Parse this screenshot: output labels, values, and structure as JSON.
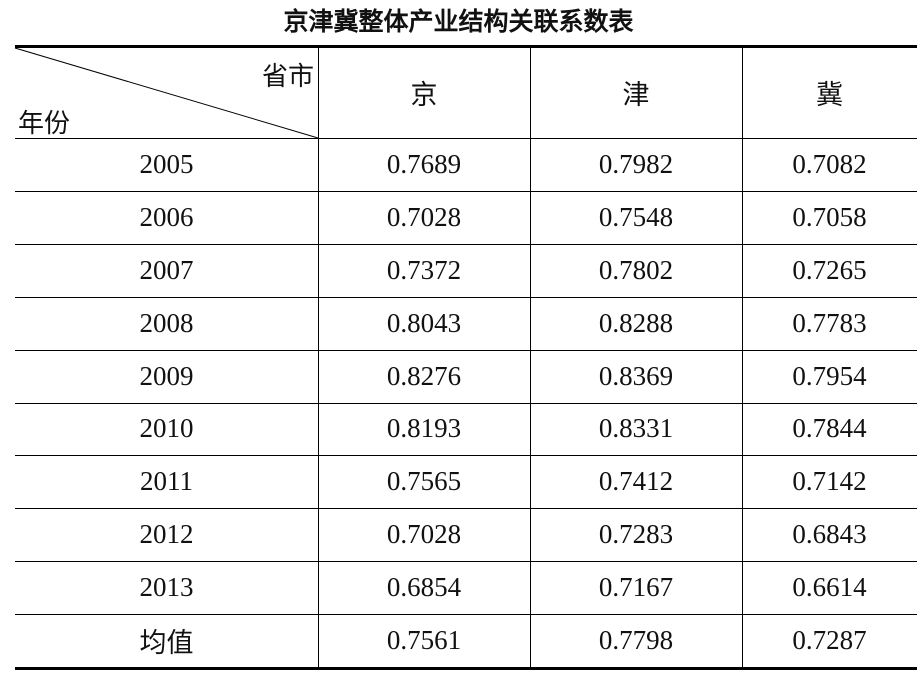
{
  "title": "京津冀整体产业结构关联系数表",
  "header": {
    "corner_top": "省市",
    "corner_bottom": "年份",
    "columns": [
      "京",
      "津",
      "冀"
    ]
  },
  "rows": [
    [
      "2005",
      "0.7689",
      "0.7982",
      "0.7082"
    ],
    [
      "2006",
      "0.7028",
      "0.7548",
      "0.7058"
    ],
    [
      "2007",
      "0.7372",
      "0.7802",
      "0.7265"
    ],
    [
      "2008",
      "0.8043",
      "0.8288",
      "0.7783"
    ],
    [
      "2009",
      "0.8276",
      "0.8369",
      "0.7954"
    ],
    [
      "2010",
      "0.8193",
      "0.8331",
      "0.7844"
    ],
    [
      "2011",
      "0.7565",
      "0.7412",
      "0.7142"
    ],
    [
      "2012",
      "0.7028",
      "0.7283",
      "0.6843"
    ],
    [
      "2013",
      "0.6854",
      "0.7167",
      "0.6614"
    ],
    [
      "均值",
      "0.7561",
      "0.7798",
      "0.7287"
    ]
  ]
}
